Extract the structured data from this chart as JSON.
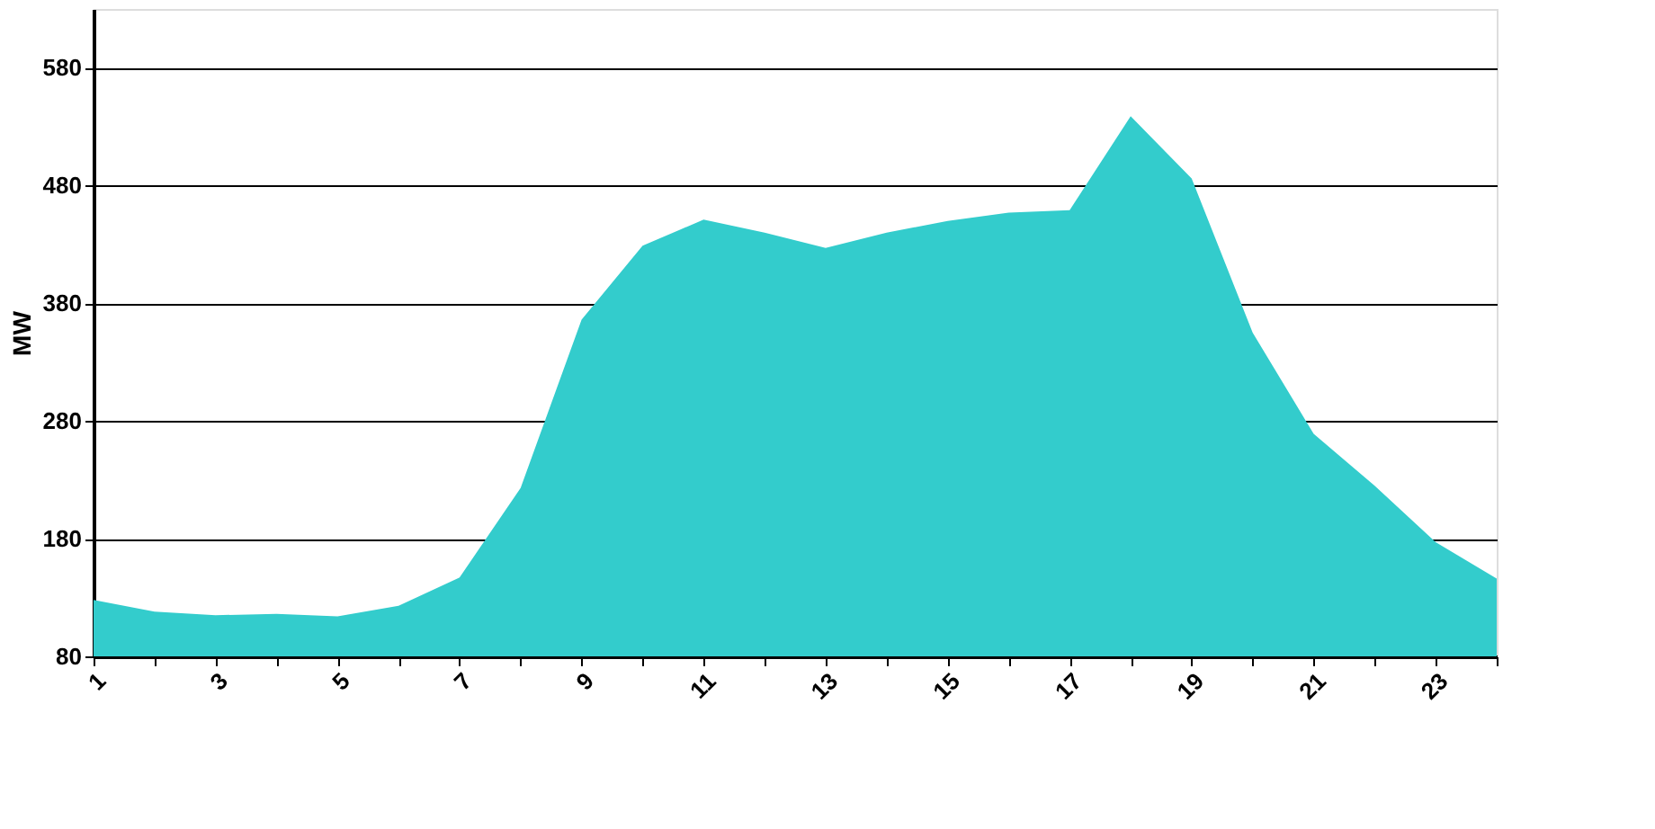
{
  "chart_data": {
    "type": "area",
    "ylabel": "MW",
    "x": [
      1,
      2,
      3,
      4,
      5,
      6,
      7,
      8,
      9,
      10,
      11,
      12,
      13,
      14,
      15,
      16,
      17,
      18,
      19,
      20,
      21,
      22,
      23,
      24
    ],
    "series": [
      {
        "color": "#33cccc",
        "values": [
          128,
          118,
          115,
          116,
          114,
          123,
          147,
          223,
          366,
          429,
          451,
          440,
          427,
          440,
          450,
          457,
          459,
          539,
          486,
          355,
          269,
          225,
          177,
          146
        ]
      }
    ],
    "xlim": [
      1,
      24
    ],
    "xticks": [
      1,
      {
        "value": 2,
        "label": null
      },
      3,
      {
        "value": 4,
        "label": null
      },
      5,
      {
        "value": 6,
        "label": null
      },
      7,
      {
        "value": 8,
        "label": null
      },
      9,
      {
        "value": 10,
        "label": null
      },
      11,
      {
        "value": 12,
        "label": null
      },
      13,
      {
        "value": 14,
        "label": null
      },
      15,
      {
        "value": 16,
        "label": null
      },
      17,
      {
        "value": 18,
        "label": null
      },
      19,
      {
        "value": 20,
        "label": null
      },
      21,
      {
        "value": 22,
        "label": null
      },
      23,
      {
        "value": 24,
        "label": null
      }
    ],
    "ylim": [
      80,
      630
    ],
    "yticks": [
      80,
      180,
      280,
      380,
      480,
      580
    ],
    "grid": "y"
  }
}
